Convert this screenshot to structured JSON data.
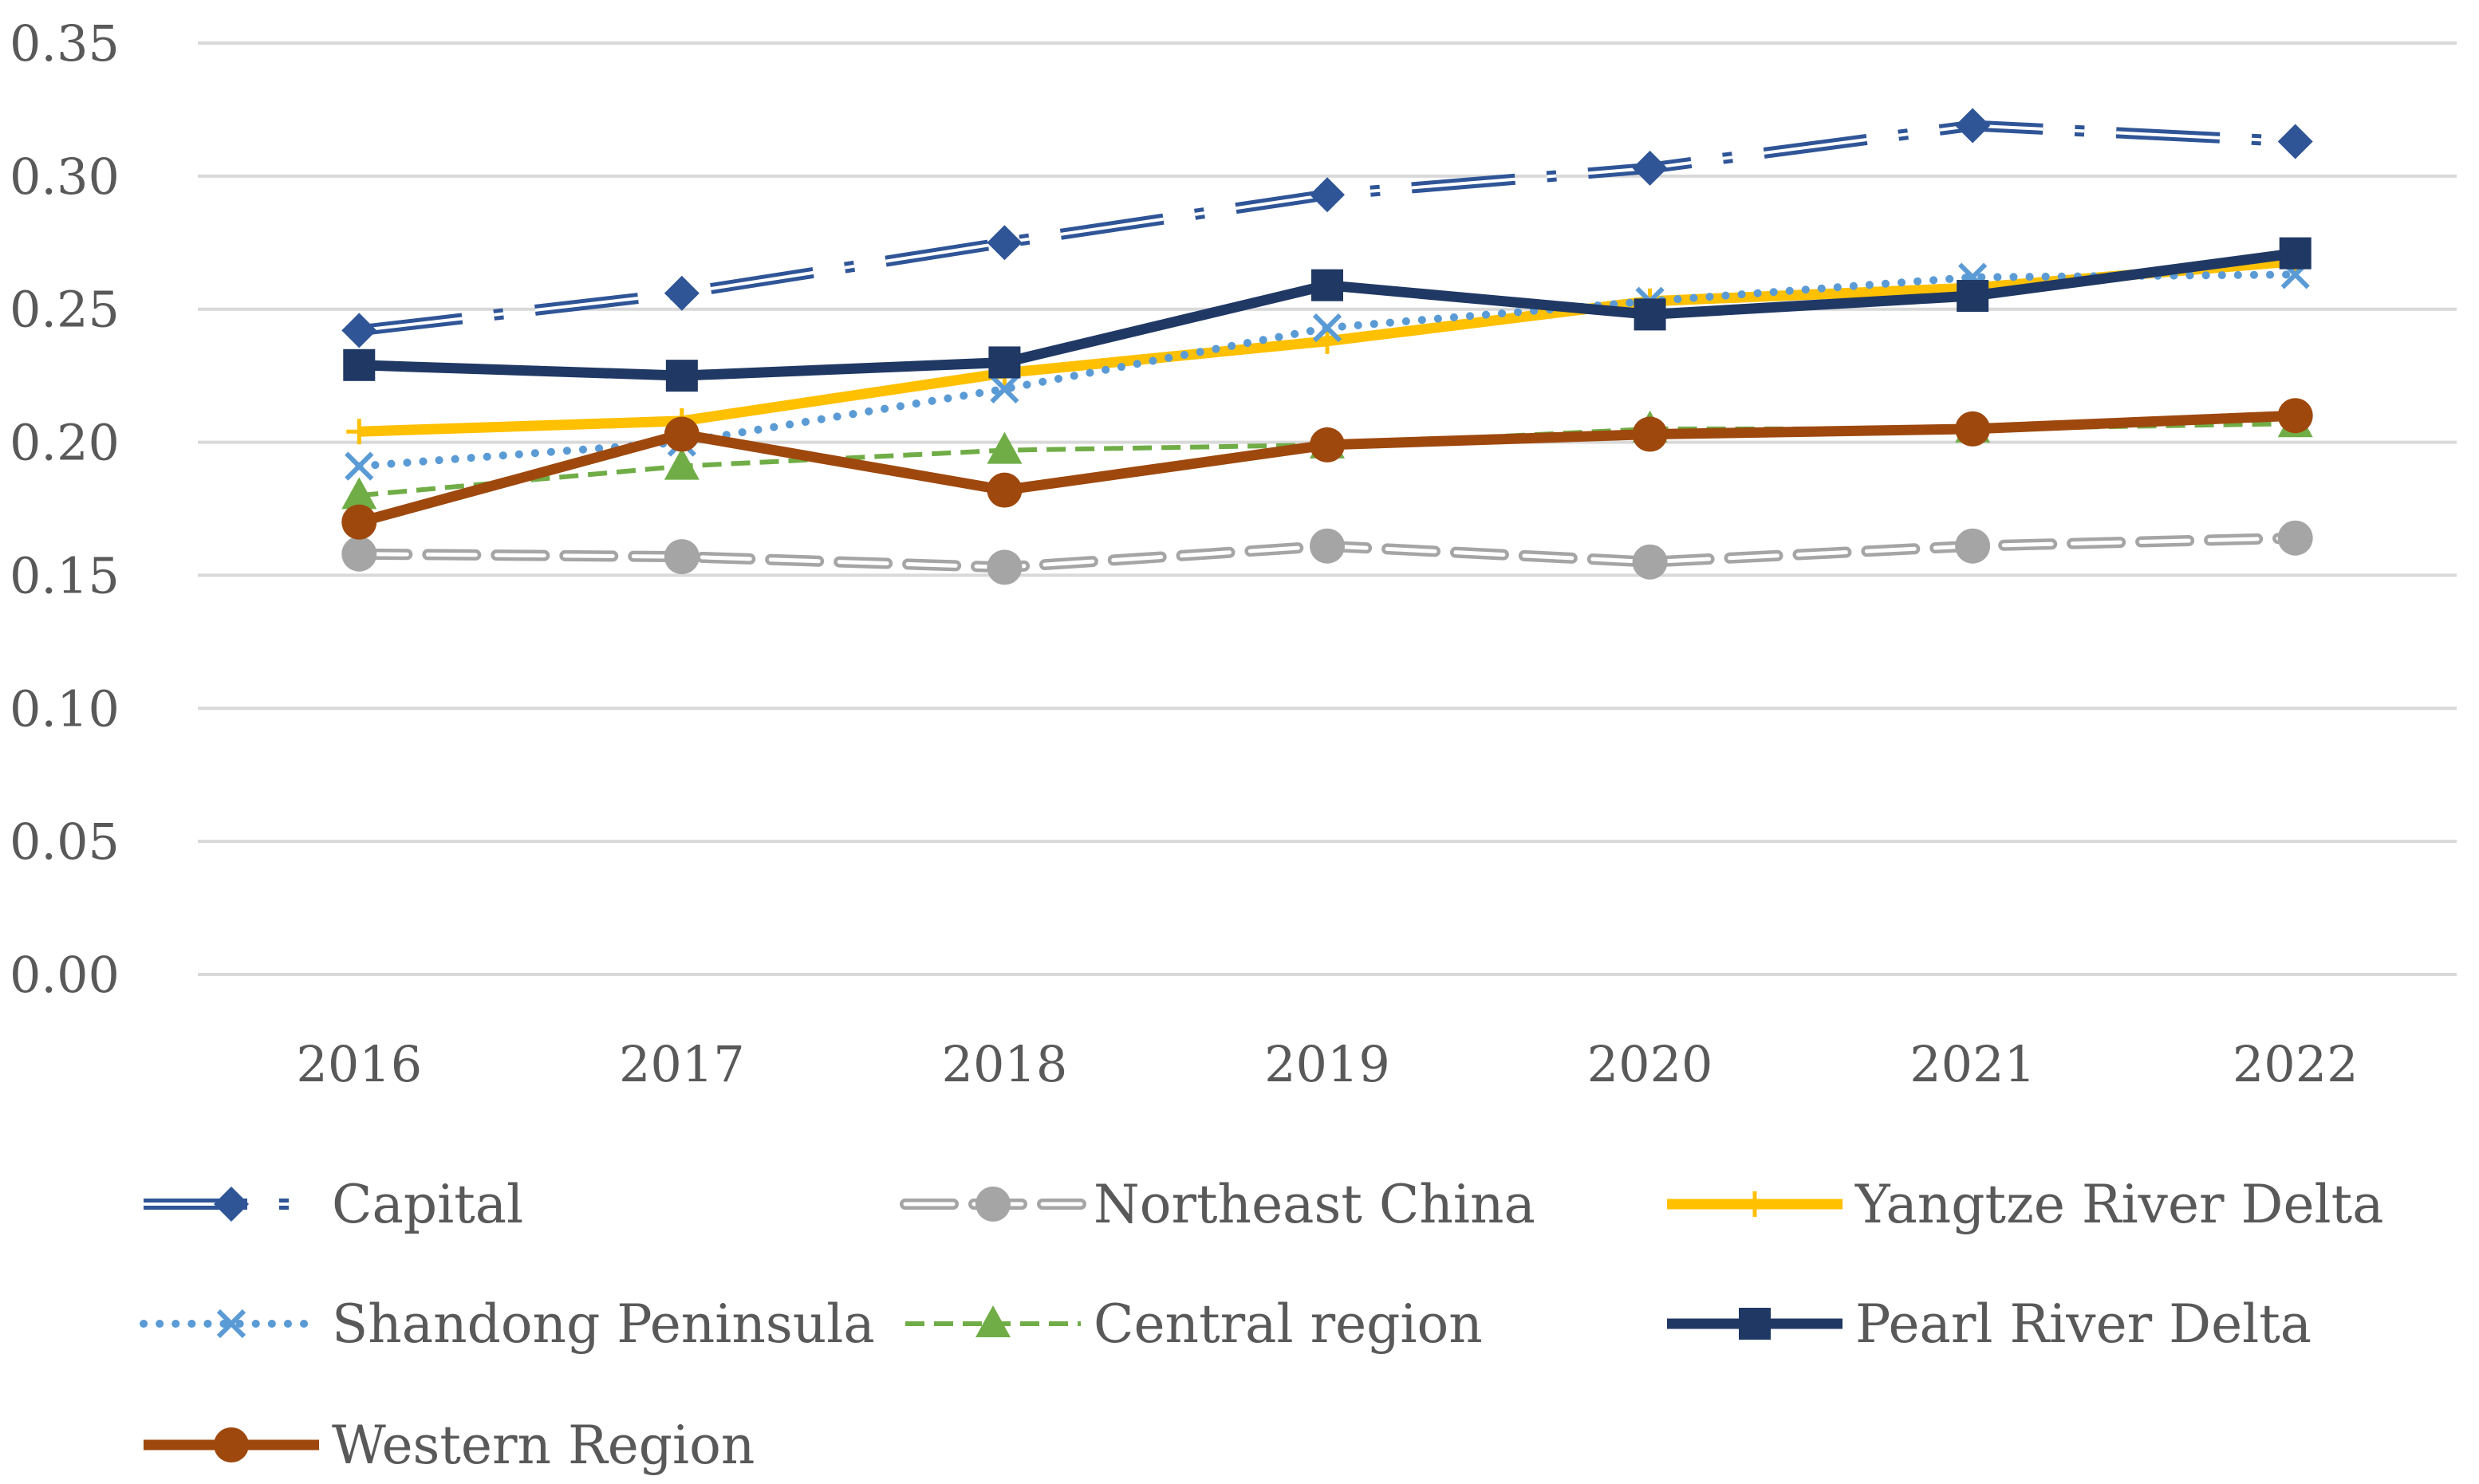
{
  "chart_data": {
    "type": "line",
    "title": "",
    "xlabel": "",
    "ylabel": "",
    "categories": [
      "2016",
      "2017",
      "2018",
      "2019",
      "2020",
      "2021",
      "2022"
    ],
    "ylim": [
      0,
      0.35
    ],
    "yticks": [
      "0.00",
      "0.05",
      "0.10",
      "0.15",
      "0.20",
      "0.25",
      "0.30",
      "0.35"
    ],
    "grid": true,
    "legend_position": "bottom",
    "series": [
      {
        "name": "Capital",
        "color": "#2F5597",
        "marker": "diamond",
        "style": "dash-dot-double",
        "values": [
          0.242,
          0.256,
          0.275,
          0.293,
          0.303,
          0.319,
          0.313
        ]
      },
      {
        "name": "Northeast China",
        "color": "#A5A5A5",
        "marker": "circle",
        "style": "dash-double",
        "values": [
          0.158,
          0.157,
          0.153,
          0.161,
          0.155,
          0.161,
          0.164
        ]
      },
      {
        "name": "Yangtze River Delta",
        "color": "#FFC000",
        "marker": "plus",
        "style": "solid-thick",
        "values": [
          0.204,
          0.208,
          0.226,
          0.238,
          0.253,
          0.258,
          0.268
        ]
      },
      {
        "name": "Shandong Peninsula",
        "color": "#5B9BD5",
        "marker": "x",
        "style": "dotted",
        "values": [
          0.191,
          0.2,
          0.22,
          0.243,
          0.253,
          0.262,
          0.263
        ]
      },
      {
        "name": "Central region",
        "color": "#70AD47",
        "marker": "triangle",
        "style": "dashed",
        "values": [
          0.18,
          0.191,
          0.197,
          0.199,
          0.205,
          0.205,
          0.207
        ]
      },
      {
        "name": "Pearl River Delta",
        "color": "#203864",
        "marker": "square",
        "style": "solid-thick",
        "values": [
          0.229,
          0.225,
          0.23,
          0.259,
          0.248,
          0.255,
          0.271
        ]
      },
      {
        "name": "Western Region",
        "color": "#9E480E",
        "marker": "circle",
        "style": "solid-thick",
        "values": [
          0.17,
          0.203,
          0.182,
          0.199,
          0.203,
          0.205,
          0.21
        ]
      }
    ]
  }
}
